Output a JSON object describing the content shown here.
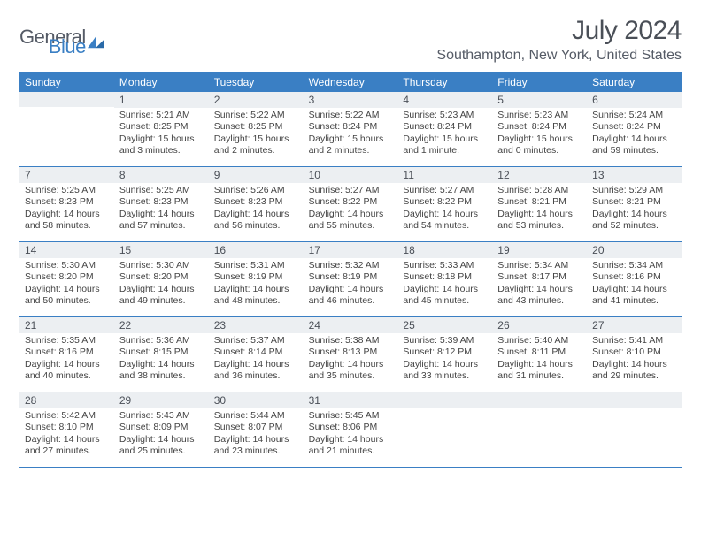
{
  "brand": {
    "part1": "General",
    "part2": "Blue"
  },
  "title": "July 2024",
  "location": "Southampton, New York, United States",
  "colors": {
    "header_bg": "#3a7fc4",
    "header_text": "#ffffff",
    "daynum_bg": "#eceff2",
    "border": "#3a7fc4",
    "title_color": "#4a4f57",
    "body_text": "#444444"
  },
  "weekdays": [
    "Sunday",
    "Monday",
    "Tuesday",
    "Wednesday",
    "Thursday",
    "Friday",
    "Saturday"
  ],
  "weeks": [
    [
      {
        "n": "",
        "sunrise": "",
        "sunset": "",
        "daylight": ""
      },
      {
        "n": "1",
        "sunrise": "Sunrise: 5:21 AM",
        "sunset": "Sunset: 8:25 PM",
        "daylight": "Daylight: 15 hours and 3 minutes."
      },
      {
        "n": "2",
        "sunrise": "Sunrise: 5:22 AM",
        "sunset": "Sunset: 8:25 PM",
        "daylight": "Daylight: 15 hours and 2 minutes."
      },
      {
        "n": "3",
        "sunrise": "Sunrise: 5:22 AM",
        "sunset": "Sunset: 8:24 PM",
        "daylight": "Daylight: 15 hours and 2 minutes."
      },
      {
        "n": "4",
        "sunrise": "Sunrise: 5:23 AM",
        "sunset": "Sunset: 8:24 PM",
        "daylight": "Daylight: 15 hours and 1 minute."
      },
      {
        "n": "5",
        "sunrise": "Sunrise: 5:23 AM",
        "sunset": "Sunset: 8:24 PM",
        "daylight": "Daylight: 15 hours and 0 minutes."
      },
      {
        "n": "6",
        "sunrise": "Sunrise: 5:24 AM",
        "sunset": "Sunset: 8:24 PM",
        "daylight": "Daylight: 14 hours and 59 minutes."
      }
    ],
    [
      {
        "n": "7",
        "sunrise": "Sunrise: 5:25 AM",
        "sunset": "Sunset: 8:23 PM",
        "daylight": "Daylight: 14 hours and 58 minutes."
      },
      {
        "n": "8",
        "sunrise": "Sunrise: 5:25 AM",
        "sunset": "Sunset: 8:23 PM",
        "daylight": "Daylight: 14 hours and 57 minutes."
      },
      {
        "n": "9",
        "sunrise": "Sunrise: 5:26 AM",
        "sunset": "Sunset: 8:23 PM",
        "daylight": "Daylight: 14 hours and 56 minutes."
      },
      {
        "n": "10",
        "sunrise": "Sunrise: 5:27 AM",
        "sunset": "Sunset: 8:22 PM",
        "daylight": "Daylight: 14 hours and 55 minutes."
      },
      {
        "n": "11",
        "sunrise": "Sunrise: 5:27 AM",
        "sunset": "Sunset: 8:22 PM",
        "daylight": "Daylight: 14 hours and 54 minutes."
      },
      {
        "n": "12",
        "sunrise": "Sunrise: 5:28 AM",
        "sunset": "Sunset: 8:21 PM",
        "daylight": "Daylight: 14 hours and 53 minutes."
      },
      {
        "n": "13",
        "sunrise": "Sunrise: 5:29 AM",
        "sunset": "Sunset: 8:21 PM",
        "daylight": "Daylight: 14 hours and 52 minutes."
      }
    ],
    [
      {
        "n": "14",
        "sunrise": "Sunrise: 5:30 AM",
        "sunset": "Sunset: 8:20 PM",
        "daylight": "Daylight: 14 hours and 50 minutes."
      },
      {
        "n": "15",
        "sunrise": "Sunrise: 5:30 AM",
        "sunset": "Sunset: 8:20 PM",
        "daylight": "Daylight: 14 hours and 49 minutes."
      },
      {
        "n": "16",
        "sunrise": "Sunrise: 5:31 AM",
        "sunset": "Sunset: 8:19 PM",
        "daylight": "Daylight: 14 hours and 48 minutes."
      },
      {
        "n": "17",
        "sunrise": "Sunrise: 5:32 AM",
        "sunset": "Sunset: 8:19 PM",
        "daylight": "Daylight: 14 hours and 46 minutes."
      },
      {
        "n": "18",
        "sunrise": "Sunrise: 5:33 AM",
        "sunset": "Sunset: 8:18 PM",
        "daylight": "Daylight: 14 hours and 45 minutes."
      },
      {
        "n": "19",
        "sunrise": "Sunrise: 5:34 AM",
        "sunset": "Sunset: 8:17 PM",
        "daylight": "Daylight: 14 hours and 43 minutes."
      },
      {
        "n": "20",
        "sunrise": "Sunrise: 5:34 AM",
        "sunset": "Sunset: 8:16 PM",
        "daylight": "Daylight: 14 hours and 41 minutes."
      }
    ],
    [
      {
        "n": "21",
        "sunrise": "Sunrise: 5:35 AM",
        "sunset": "Sunset: 8:16 PM",
        "daylight": "Daylight: 14 hours and 40 minutes."
      },
      {
        "n": "22",
        "sunrise": "Sunrise: 5:36 AM",
        "sunset": "Sunset: 8:15 PM",
        "daylight": "Daylight: 14 hours and 38 minutes."
      },
      {
        "n": "23",
        "sunrise": "Sunrise: 5:37 AM",
        "sunset": "Sunset: 8:14 PM",
        "daylight": "Daylight: 14 hours and 36 minutes."
      },
      {
        "n": "24",
        "sunrise": "Sunrise: 5:38 AM",
        "sunset": "Sunset: 8:13 PM",
        "daylight": "Daylight: 14 hours and 35 minutes."
      },
      {
        "n": "25",
        "sunrise": "Sunrise: 5:39 AM",
        "sunset": "Sunset: 8:12 PM",
        "daylight": "Daylight: 14 hours and 33 minutes."
      },
      {
        "n": "26",
        "sunrise": "Sunrise: 5:40 AM",
        "sunset": "Sunset: 8:11 PM",
        "daylight": "Daylight: 14 hours and 31 minutes."
      },
      {
        "n": "27",
        "sunrise": "Sunrise: 5:41 AM",
        "sunset": "Sunset: 8:10 PM",
        "daylight": "Daylight: 14 hours and 29 minutes."
      }
    ],
    [
      {
        "n": "28",
        "sunrise": "Sunrise: 5:42 AM",
        "sunset": "Sunset: 8:10 PM",
        "daylight": "Daylight: 14 hours and 27 minutes."
      },
      {
        "n": "29",
        "sunrise": "Sunrise: 5:43 AM",
        "sunset": "Sunset: 8:09 PM",
        "daylight": "Daylight: 14 hours and 25 minutes."
      },
      {
        "n": "30",
        "sunrise": "Sunrise: 5:44 AM",
        "sunset": "Sunset: 8:07 PM",
        "daylight": "Daylight: 14 hours and 23 minutes."
      },
      {
        "n": "31",
        "sunrise": "Sunrise: 5:45 AM",
        "sunset": "Sunset: 8:06 PM",
        "daylight": "Daylight: 14 hours and 21 minutes."
      },
      {
        "n": "",
        "sunrise": "",
        "sunset": "",
        "daylight": ""
      },
      {
        "n": "",
        "sunrise": "",
        "sunset": "",
        "daylight": ""
      },
      {
        "n": "",
        "sunrise": "",
        "sunset": "",
        "daylight": ""
      }
    ]
  ]
}
